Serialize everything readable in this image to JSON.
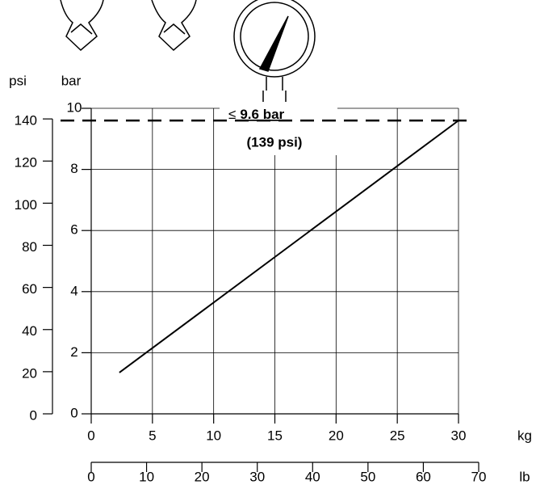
{
  "chart_data": {
    "type": "line",
    "y_label": "bar",
    "y2_label": "psi",
    "x_label": "kg",
    "x2_label": "lb",
    "annotation": [
      "≤",
      "9.6 bar",
      "(139 psi)"
    ],
    "limit": 9.6,
    "x": [
      2.3,
      30
    ],
    "series": [
      {
        "color": "#000000",
        "values": [
          1.35,
          9.6
        ]
      }
    ],
    "xlim": [
      0,
      30
    ],
    "xticks": [
      0,
      5,
      10,
      15,
      20,
      25,
      30
    ],
    "x2lim": [
      0,
      70
    ],
    "x2ticks": [
      0,
      10,
      20,
      30,
      40,
      50,
      60,
      70
    ],
    "ylim": [
      0,
      10
    ],
    "yticks": [
      0,
      2,
      4,
      6,
      8,
      10
    ],
    "y2lim": [
      0,
      145.04
    ],
    "y2ticks": [
      0,
      20,
      40,
      60,
      80,
      100,
      120,
      140
    ],
    "grid": true
  }
}
